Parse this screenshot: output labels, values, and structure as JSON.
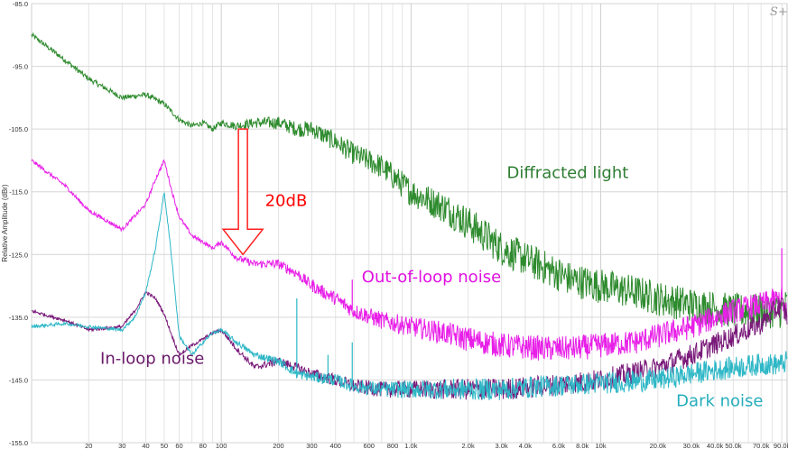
{
  "chart_data": {
    "type": "line",
    "ylabel": "Relative Amplitude (dBr)",
    "xscale": "log",
    "xlim": [
      10,
      96000
    ],
    "ylim": [
      -155,
      -85
    ],
    "grid": true,
    "y_ticks": [
      {
        "value": -85,
        "label": "-85.0"
      },
      {
        "value": -95,
        "label": "-95.0"
      },
      {
        "value": -105,
        "label": "-105.0"
      },
      {
        "value": -115,
        "label": "-115.0"
      },
      {
        "value": -125,
        "label": "-125.0"
      },
      {
        "value": -135,
        "label": "-135.0"
      },
      {
        "value": -145,
        "label": "-145.0"
      },
      {
        "value": -155,
        "label": "-155.0"
      }
    ],
    "x_ticks": [
      {
        "value": 20,
        "label": "20"
      },
      {
        "value": 30,
        "label": "30"
      },
      {
        "value": 40,
        "label": "40"
      },
      {
        "value": 50,
        "label": "50"
      },
      {
        "value": 60,
        "label": "60"
      },
      {
        "value": 80,
        "label": "80"
      },
      {
        "value": 100,
        "label": "100"
      },
      {
        "value": 200,
        "label": "200"
      },
      {
        "value": 300,
        "label": "300"
      },
      {
        "value": 400,
        "label": "400"
      },
      {
        "value": 600,
        "label": "600"
      },
      {
        "value": 800,
        "label": "800"
      },
      {
        "value": 1000,
        "label": "1.0k"
      },
      {
        "value": 2000,
        "label": "2.0k"
      },
      {
        "value": 3000,
        "label": "3.0k"
      },
      {
        "value": 4000,
        "label": "4.0k"
      },
      {
        "value": 6000,
        "label": "6.0k"
      },
      {
        "value": 8000,
        "label": "8.0k"
      },
      {
        "value": 10000,
        "label": "10k"
      },
      {
        "value": 20000,
        "label": "20.0k"
      },
      {
        "value": 30000,
        "label": "30.0k"
      },
      {
        "value": 40000,
        "label": "40.0k"
      },
      {
        "value": 50000,
        "label": "50.0k"
      },
      {
        "value": 70000,
        "label": "70.0k"
      },
      {
        "value": 90000,
        "label": "90.0k"
      }
    ],
    "series": [
      {
        "name": "Diffracted light",
        "color": "#2e8b2e",
        "noise": 3.5,
        "x": [
          10,
          15,
          20,
          30,
          40,
          50,
          60,
          70,
          80,
          90,
          100,
          120,
          150,
          200,
          250,
          300,
          400,
          500,
          700,
          1000,
          1500,
          2000,
          3000,
          5000,
          7000,
          10000,
          15000,
          20000,
          30000,
          50000,
          70000,
          90000,
          96000
        ],
        "y": [
          -90,
          -94,
          -97,
          -100,
          -99.5,
          -101,
          -103.5,
          -104.5,
          -104,
          -105,
          -104,
          -104.5,
          -104,
          -104,
          -105,
          -105,
          -107,
          -109,
          -111,
          -115,
          -117.5,
          -120,
          -124,
          -127,
          -129,
          -130,
          -131,
          -132,
          -133,
          -134,
          -134,
          -134,
          -133
        ]
      },
      {
        "name": "Out-of-loop noise",
        "color": "#e81fe8",
        "noise": 2.5,
        "x": [
          10,
          15,
          20,
          30,
          40,
          45,
          50,
          55,
          60,
          70,
          80,
          90,
          100,
          120,
          150,
          200,
          250,
          300,
          400,
          500,
          700,
          1000,
          1500,
          2000,
          3000,
          5000,
          7000,
          10000,
          15000,
          20000,
          30000,
          50000,
          70000,
          90000,
          96000
        ],
        "y": [
          -110,
          -114,
          -118,
          -121,
          -117,
          -113,
          -110,
          -115,
          -119,
          -122,
          -123,
          -124,
          -123,
          -125.5,
          -126.5,
          -126.5,
          -128,
          -130,
          -132,
          -134,
          -135.5,
          -136.5,
          -137.5,
          -138.5,
          -139.5,
          -140,
          -140,
          -139.5,
          -139,
          -138,
          -136.5,
          -134,
          -133,
          -132,
          -135
        ]
      },
      {
        "name": "In-loop noise",
        "color": "#7a1a7a",
        "noise": 2.2,
        "x": [
          10,
          15,
          20,
          30,
          35,
          40,
          45,
          50,
          55,
          60,
          70,
          80,
          90,
          100,
          120,
          150,
          200,
          250,
          300,
          400,
          500,
          700,
          1000,
          2000,
          3000,
          5000,
          10000,
          20000,
          30000,
          50000,
          70000,
          90000,
          96000
        ],
        "y": [
          -134,
          -135.5,
          -137,
          -136.5,
          -134,
          -131,
          -132,
          -134.5,
          -138,
          -141,
          -139.5,
          -138.5,
          -137.5,
          -137,
          -140,
          -143,
          -142,
          -143,
          -144,
          -145,
          -146,
          -146.5,
          -146.5,
          -146.5,
          -146.5,
          -146,
          -145,
          -143,
          -141,
          -138,
          -136,
          -133,
          -135
        ]
      },
      {
        "name": "Dark noise",
        "color": "#2db7c6",
        "noise": 2.2,
        "x": [
          10,
          15,
          20,
          30,
          35,
          40,
          45,
          50,
          55,
          60,
          70,
          80,
          90,
          100,
          120,
          150,
          200,
          250,
          300,
          400,
          500,
          700,
          1000,
          2000,
          3000,
          5000,
          10000,
          20000,
          30000,
          50000,
          70000,
          90000,
          96000
        ],
        "y": [
          -136.5,
          -136,
          -136.5,
          -137,
          -135,
          -131,
          -124,
          -115,
          -126,
          -138,
          -141,
          -139,
          -137.5,
          -137,
          -139,
          -141,
          -142,
          -144,
          -144.5,
          -145,
          -146,
          -146.5,
          -146.5,
          -146.5,
          -146.5,
          -146,
          -145.5,
          -145,
          -144,
          -143,
          -142.5,
          -142.5,
          -142
        ]
      }
    ],
    "spikes": [
      {
        "series": 3,
        "x": 250,
        "y": -132
      },
      {
        "series": 3,
        "x": 365,
        "y": -141
      },
      {
        "series": 3,
        "x": 490,
        "y": -139
      },
      {
        "series": 1,
        "x": 305,
        "y": -129
      },
      {
        "series": 1,
        "x": 490,
        "y": -129
      },
      {
        "series": 1,
        "x": 90000,
        "y": -124
      }
    ],
    "annotations": [
      {
        "text": "Diffracted light",
        "color": "#2e7d32",
        "x": 3200,
        "y": -112.8
      },
      {
        "text": "20dB",
        "color": "#ff0000",
        "x": 170,
        "y": -117.3
      },
      {
        "text": "Out-of-loop noise",
        "color": "#e010e0",
        "x": 550,
        "y": -129.4
      },
      {
        "text": "In-loop noise",
        "color": "#6a1a6a",
        "x": 23,
        "y": -142.4
      },
      {
        "text": "Dark noise",
        "color": "#26aebc",
        "x": 25000,
        "y": -149.2
      }
    ],
    "arrow": {
      "color": "#ff2020",
      "x": 130,
      "y_from": -105,
      "y_to": -125
    },
    "logo": "S+"
  }
}
